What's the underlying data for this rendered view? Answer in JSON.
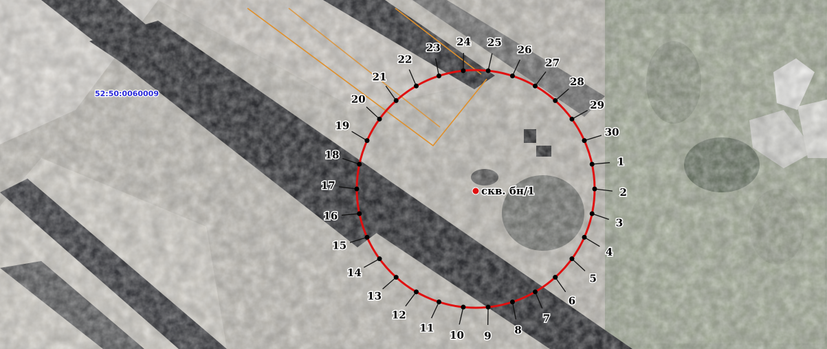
{
  "map": {
    "parcel_label": "52:50:0060009",
    "well_label": "скв. бн/1",
    "colors": {
      "circle": "#e01010",
      "boundary": "#e0902a",
      "parcel_text": "#2a2ad8",
      "point": "#000000",
      "well": "#e01010"
    },
    "points": [
      "1",
      "2",
      "3",
      "4",
      "5",
      "6",
      "7",
      "8",
      "9",
      "10",
      "11",
      "12",
      "13",
      "14",
      "15",
      "16",
      "17",
      "18",
      "19",
      "20",
      "21",
      "22",
      "23",
      "24",
      "25",
      "26",
      "27",
      "28",
      "29",
      "30"
    ]
  }
}
